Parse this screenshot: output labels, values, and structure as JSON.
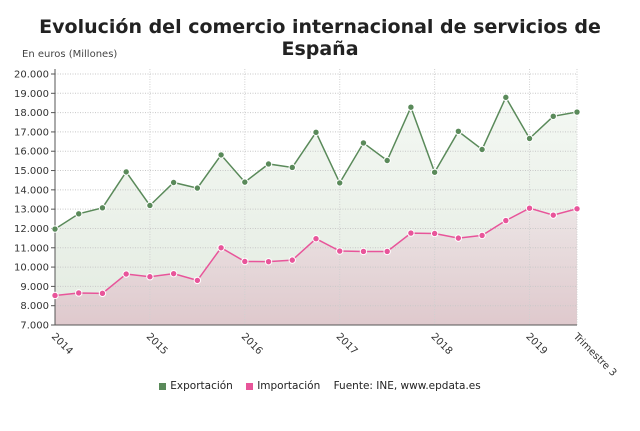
{
  "chart_data": {
    "type": "area",
    "title": "Evolución del comercio internacional de servicios de España",
    "ylabel": "En euros (Millones)",
    "source": "Fuente: INE, www.epdata.es",
    "ylim": [
      7000,
      20000
    ],
    "yticks": [
      "7.000",
      "8.000",
      "9.000",
      "10.000",
      "11.000",
      "12.000",
      "13.000",
      "14.000",
      "15.000",
      "16.000",
      "17.000",
      "18.000",
      "19.000",
      "20.000"
    ],
    "xtick_labels": [
      "2014",
      "2015",
      "2016",
      "2017",
      "2018",
      "2019",
      "Trimestre 3"
    ],
    "grid": true,
    "legend_position": "bottom",
    "x": [
      "2014-T1",
      "2014-T2",
      "2014-T3",
      "2014-T4",
      "2015-T1",
      "2015-T2",
      "2015-T3",
      "2015-T4",
      "2016-T1",
      "2016-T2",
      "2016-T3",
      "2016-T4",
      "2017-T1",
      "2017-T2",
      "2017-T3",
      "2017-T4",
      "2018-T1",
      "2018-T2",
      "2018-T3",
      "2018-T4",
      "2019-T1",
      "2019-T2",
      "2019-T3"
    ],
    "series": [
      {
        "name": "Exportación",
        "color": "#5a8a5a",
        "values": [
          11970,
          12760,
          13070,
          14930,
          13190,
          14380,
          14090,
          15810,
          14400,
          15340,
          15160,
          16980,
          14360,
          16430,
          15520,
          18280,
          14910,
          17030,
          16090,
          18790,
          16660,
          17810,
          18030
        ]
      },
      {
        "name": "Importación",
        "color": "#e8559a",
        "values": [
          8530,
          8660,
          8640,
          9640,
          9500,
          9660,
          9310,
          11000,
          10290,
          10280,
          10360,
          11470,
          10830,
          10810,
          10810,
          11760,
          11740,
          11500,
          11640,
          12410,
          13050,
          12690,
          13020
        ]
      }
    ]
  }
}
